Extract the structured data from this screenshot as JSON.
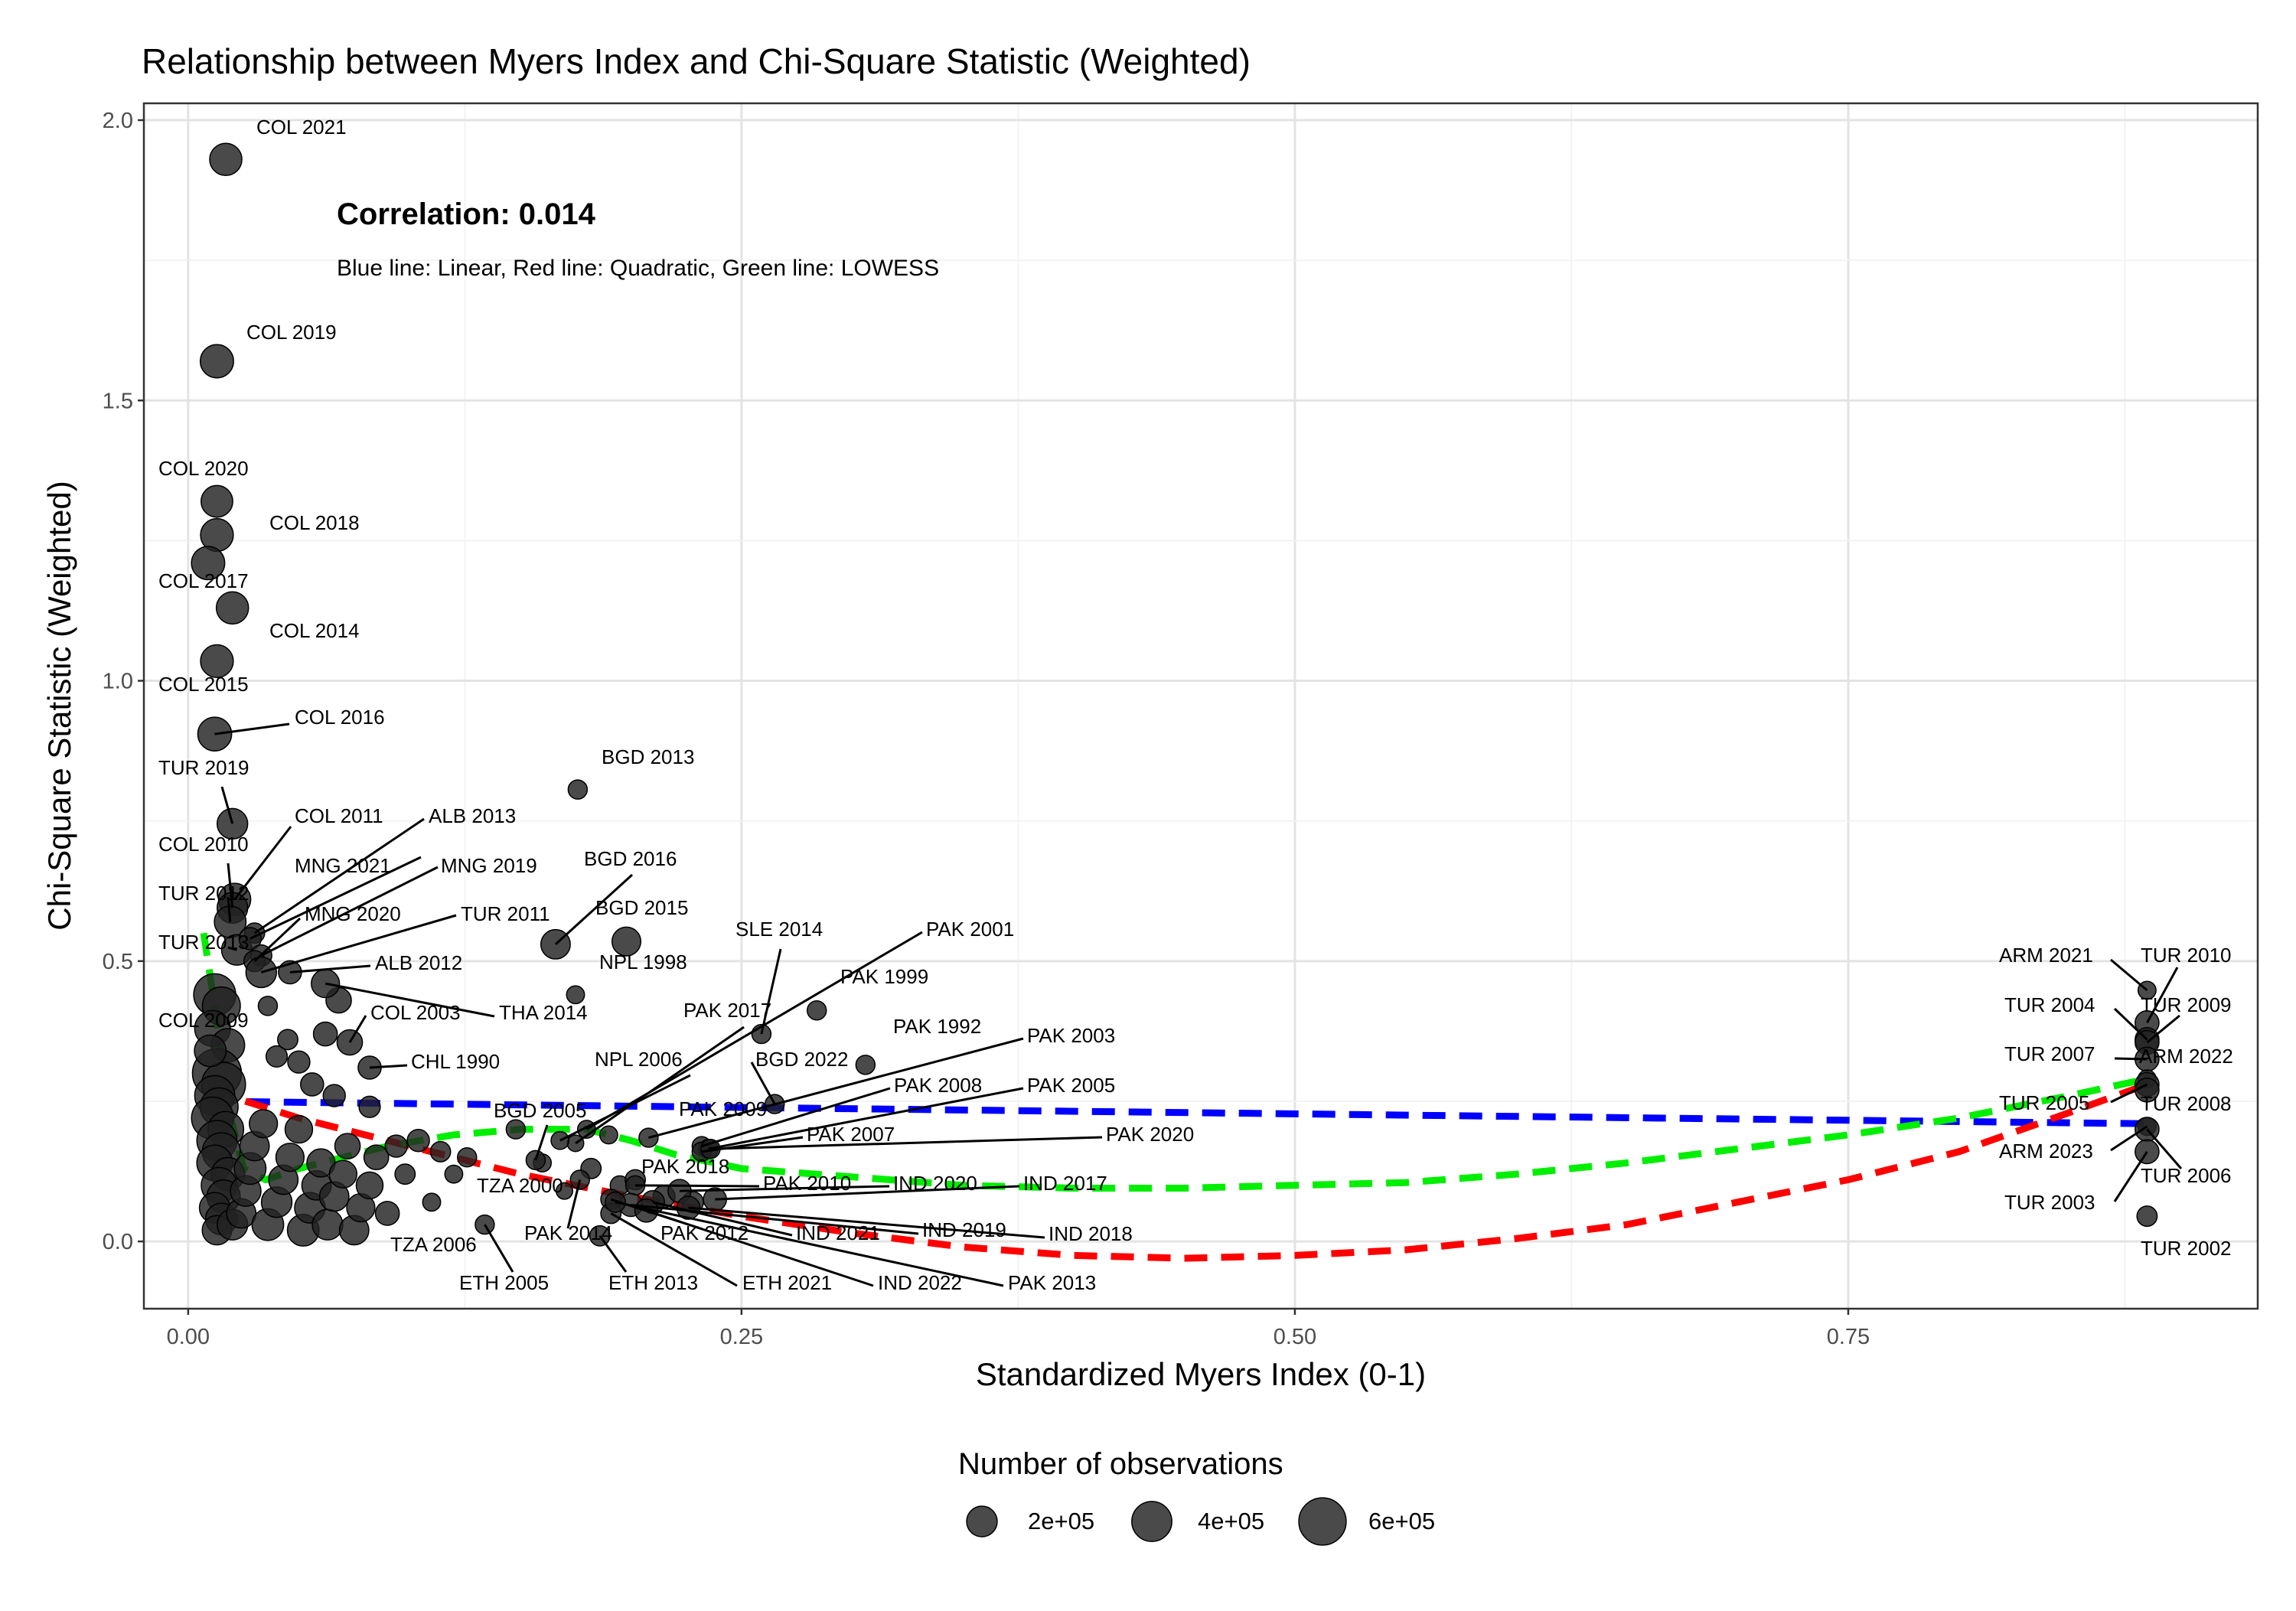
{
  "chart_data": {
    "type": "scatter",
    "title": "Relationship between Myers Index and Chi-Square Statistic (Weighted)",
    "xlabel": "Standardized Myers Index (0-1)",
    "ylabel": "Chi-Square Statistic (Weighted)",
    "xlim": [
      -0.02,
      0.935
    ],
    "ylim": [
      -0.12,
      2.03
    ],
    "x_ticks": [
      0.0,
      0.25,
      0.5,
      0.75
    ],
    "x_tick_labels": [
      "0.00",
      "0.25",
      "0.50",
      "0.75"
    ],
    "y_ticks": [
      0.0,
      0.5,
      1.0,
      1.5,
      2.0
    ],
    "y_tick_labels": [
      "0.0",
      "0.5",
      "1.0",
      "1.5",
      "2.0"
    ],
    "grid": true,
    "annotation": {
      "correlation": "Correlation: 0.014",
      "note": "Blue line: Linear, Red line: Quadratic, Green line: LOWESS"
    },
    "legend": {
      "title": "Number of observations",
      "position": "bottom",
      "entries": [
        {
          "label": "2e+05",
          "value": 200000
        },
        {
          "label": "4e+05",
          "value": 400000
        },
        {
          "label": "6e+05",
          "value": 600000
        }
      ]
    },
    "fit_lines": [
      {
        "name": "Linear",
        "color": "#0000ff",
        "x": [
          0.01,
          0.885
        ],
        "y": [
          0.25,
          0.21
        ]
      },
      {
        "name": "Quadratic",
        "color": "#ff0000",
        "x": [
          0.01,
          0.05,
          0.1,
          0.15,
          0.2,
          0.25,
          0.3,
          0.35,
          0.4,
          0.45,
          0.5,
          0.55,
          0.6,
          0.65,
          0.7,
          0.75,
          0.8,
          0.85,
          0.885
        ],
        "y": [
          0.27,
          0.22,
          0.17,
          0.12,
          0.08,
          0.045,
          0.015,
          -0.01,
          -0.025,
          -0.03,
          -0.025,
          -0.015,
          0.005,
          0.03,
          0.07,
          0.11,
          0.16,
          0.23,
          0.28
        ]
      },
      {
        "name": "LOWESS",
        "color": "#00ee00",
        "x": [
          0.007,
          0.012,
          0.018,
          0.025,
          0.035,
          0.05,
          0.07,
          0.09,
          0.12,
          0.15,
          0.18,
          0.2,
          0.22,
          0.25,
          0.3,
          0.35,
          0.4,
          0.45,
          0.5,
          0.55,
          0.6,
          0.65,
          0.7,
          0.75,
          0.8,
          0.85,
          0.885
        ],
        "y": [
          0.55,
          0.42,
          0.24,
          0.13,
          0.11,
          0.13,
          0.15,
          0.17,
          0.19,
          0.2,
          0.2,
          0.18,
          0.155,
          0.13,
          0.115,
          0.1,
          0.095,
          0.095,
          0.1,
          0.105,
          0.12,
          0.14,
          0.165,
          0.19,
          0.22,
          0.26,
          0.29
        ]
      }
    ],
    "labeled_points": [
      {
        "label": "COL 2021",
        "x": 0.017,
        "y": 1.93,
        "n": 230000
      },
      {
        "label": "COL 2019",
        "x": 0.013,
        "y": 1.57,
        "n": 250000
      },
      {
        "label": "COL 2020",
        "x": 0.013,
        "y": 1.32,
        "n": 220000
      },
      {
        "label": "COL 2018",
        "x": 0.013,
        "y": 1.26,
        "n": 240000
      },
      {
        "label": "COL 2017",
        "x": 0.009,
        "y": 1.21,
        "n": 250000
      },
      {
        "label": "COL 2014",
        "x": 0.02,
        "y": 1.13,
        "n": 230000
      },
      {
        "label": "COL 2015",
        "x": 0.013,
        "y": 1.035,
        "n": 240000
      },
      {
        "label": "COL 2016",
        "x": 0.012,
        "y": 0.905,
        "n": 260000
      },
      {
        "label": "TUR 2019",
        "x": 0.02,
        "y": 0.745,
        "n": 200000
      },
      {
        "label": "COL 2011",
        "x": 0.021,
        "y": 0.61,
        "n": 230000
      },
      {
        "label": "COL 2010",
        "x": 0.02,
        "y": 0.595,
        "n": 200000
      },
      {
        "label": "TUR 2012",
        "x": 0.019,
        "y": 0.57,
        "n": 220000
      },
      {
        "label": "TUR 2013",
        "x": 0.022,
        "y": 0.52,
        "n": 200000
      },
      {
        "label": "ALB 2013",
        "x": 0.03,
        "y": 0.55,
        "n": 60000
      },
      {
        "label": "MNG 2021",
        "x": 0.028,
        "y": 0.54,
        "n": 80000
      },
      {
        "label": "MNG 2019",
        "x": 0.033,
        "y": 0.51,
        "n": 70000
      },
      {
        "label": "MNG 2020",
        "x": 0.03,
        "y": 0.5,
        "n": 70000
      },
      {
        "label": "TUR 2011",
        "x": 0.033,
        "y": 0.48,
        "n": 200000
      },
      {
        "label": "ALB 2012",
        "x": 0.046,
        "y": 0.48,
        "n": 90000
      },
      {
        "label": "THA 2014",
        "x": 0.062,
        "y": 0.46,
        "n": 160000
      },
      {
        "label": "COL 2009",
        "x": 0.01,
        "y": 0.34,
        "n": 220000
      },
      {
        "label": "COL 2003",
        "x": 0.073,
        "y": 0.355,
        "n": 120000
      },
      {
        "label": "CHL 1990",
        "x": 0.082,
        "y": 0.31,
        "n": 90000
      },
      {
        "label": "BGD 2013",
        "x": 0.176,
        "y": 0.806,
        "n": 50000
      },
      {
        "label": "BGD 2016",
        "x": 0.166,
        "y": 0.53,
        "n": 180000
      },
      {
        "label": "BGD 2015",
        "x": 0.198,
        "y": 0.535,
        "n": 170000
      },
      {
        "label": "NPL 1998",
        "x": 0.175,
        "y": 0.44,
        "n": 40000
      },
      {
        "label": "SLE 2014",
        "x": 0.259,
        "y": 0.37,
        "n": 50000
      },
      {
        "label": "PAK 2001",
        "x": 0.18,
        "y": 0.2,
        "n": 40000
      },
      {
        "label": "PAK 1999",
        "x": 0.284,
        "y": 0.412,
        "n": 50000
      },
      {
        "label": "PAK 2017",
        "x": 0.175,
        "y": 0.175,
        "n": 30000
      },
      {
        "label": "PAK 1992",
        "x": 0.306,
        "y": 0.315,
        "n": 50000
      },
      {
        "label": "NPL 2006",
        "x": 0.168,
        "y": 0.18,
        "n": 40000
      },
      {
        "label": "BGD 2022",
        "x": 0.265,
        "y": 0.245,
        "n": 50000
      },
      {
        "label": "PAK 2003",
        "x": 0.208,
        "y": 0.185,
        "n": 50000
      },
      {
        "label": "BGD 2005",
        "x": 0.157,
        "y": 0.145,
        "n": 50000
      },
      {
        "label": "PAK 2009",
        "x": 0.19,
        "y": 0.19,
        "n": 40000
      },
      {
        "label": "PAK 2008",
        "x": 0.232,
        "y": 0.17,
        "n": 50000
      },
      {
        "label": "PAK 2005",
        "x": 0.235,
        "y": 0.165,
        "n": 50000
      },
      {
        "label": "PAK 2007",
        "x": 0.232,
        "y": 0.16,
        "n": 50000
      },
      {
        "label": "PAK 2020",
        "x": 0.236,
        "y": 0.165,
        "n": 50000
      },
      {
        "label": "PAK 2018",
        "x": 0.202,
        "y": 0.11,
        "n": 60000
      },
      {
        "label": "PAK 2010",
        "x": 0.202,
        "y": 0.1,
        "n": 50000
      },
      {
        "label": "IND 2020",
        "x": 0.222,
        "y": 0.09,
        "n": 90000
      },
      {
        "label": "IND 2017",
        "x": 0.238,
        "y": 0.075,
        "n": 90000
      },
      {
        "label": "TZA 2000",
        "x": 0.17,
        "y": 0.09,
        "n": 30000
      },
      {
        "label": "TZA 2006",
        "x": 0.11,
        "y": 0.07,
        "n": 40000
      },
      {
        "label": "PAK 2014",
        "x": 0.177,
        "y": 0.11,
        "n": 50000
      },
      {
        "label": "PAK 2012",
        "x": 0.191,
        "y": 0.075,
        "n": 60000
      },
      {
        "label": "IND 2021",
        "x": 0.21,
        "y": 0.07,
        "n": 90000
      },
      {
        "label": "IND 2019",
        "x": 0.2,
        "y": 0.065,
        "n": 90000
      },
      {
        "label": "IND 2018",
        "x": 0.226,
        "y": 0.06,
        "n": 90000
      },
      {
        "label": "ETH 2005",
        "x": 0.134,
        "y": 0.03,
        "n": 50000
      },
      {
        "label": "ETH 2013",
        "x": 0.186,
        "y": 0.01,
        "n": 60000
      },
      {
        "label": "ETH 2021",
        "x": 0.191,
        "y": 0.05,
        "n": 60000
      },
      {
        "label": "IND 2022",
        "x": 0.207,
        "y": 0.055,
        "n": 90000
      },
      {
        "label": "PAK 2013",
        "x": 0.193,
        "y": 0.07,
        "n": 60000
      },
      {
        "label": "ARM 2021",
        "x": 0.885,
        "y": 0.448,
        "n": 40000
      },
      {
        "label": "TUR 2010",
        "x": 0.885,
        "y": 0.39,
        "n": 100000
      },
      {
        "label": "TUR 2004",
        "x": 0.885,
        "y": 0.36,
        "n": 100000
      },
      {
        "label": "TUR 2009",
        "x": 0.885,
        "y": 0.355,
        "n": 100000
      },
      {
        "label": "TUR 2007",
        "x": 0.885,
        "y": 0.325,
        "n": 100000
      },
      {
        "label": "ARM 2022",
        "x": 0.885,
        "y": 0.29,
        "n": 40000
      },
      {
        "label": "TUR 2005",
        "x": 0.885,
        "y": 0.28,
        "n": 100000
      },
      {
        "label": "TUR 2008",
        "x": 0.885,
        "y": 0.27,
        "n": 100000
      },
      {
        "label": "ARM 2023",
        "x": 0.885,
        "y": 0.205,
        "n": 40000
      },
      {
        "label": "TUR 2006",
        "x": 0.885,
        "y": 0.2,
        "n": 100000
      },
      {
        "label": "TUR 2003",
        "x": 0.885,
        "y": 0.16,
        "n": 100000
      },
      {
        "label": "TUR 2002",
        "x": 0.885,
        "y": 0.045,
        "n": 60000
      }
    ],
    "unlabeled_points": [
      {
        "x": 0.012,
        "y": 0.44,
        "n": 450000
      },
      {
        "x": 0.015,
        "y": 0.42,
        "n": 350000
      },
      {
        "x": 0.011,
        "y": 0.38,
        "n": 300000
      },
      {
        "x": 0.018,
        "y": 0.35,
        "n": 250000
      },
      {
        "x": 0.013,
        "y": 0.3,
        "n": 650000
      },
      {
        "x": 0.016,
        "y": 0.28,
        "n": 500000
      },
      {
        "x": 0.012,
        "y": 0.26,
        "n": 400000
      },
      {
        "x": 0.014,
        "y": 0.24,
        "n": 350000
      },
      {
        "x": 0.011,
        "y": 0.22,
        "n": 450000
      },
      {
        "x": 0.017,
        "y": 0.2,
        "n": 300000
      },
      {
        "x": 0.013,
        "y": 0.18,
        "n": 400000
      },
      {
        "x": 0.015,
        "y": 0.16,
        "n": 350000
      },
      {
        "x": 0.012,
        "y": 0.14,
        "n": 300000
      },
      {
        "x": 0.018,
        "y": 0.12,
        "n": 250000
      },
      {
        "x": 0.014,
        "y": 0.1,
        "n": 300000
      },
      {
        "x": 0.016,
        "y": 0.08,
        "n": 250000
      },
      {
        "x": 0.012,
        "y": 0.06,
        "n": 200000
      },
      {
        "x": 0.015,
        "y": 0.04,
        "n": 220000
      },
      {
        "x": 0.013,
        "y": 0.02,
        "n": 180000
      },
      {
        "x": 0.02,
        "y": 0.03,
        "n": 200000
      },
      {
        "x": 0.024,
        "y": 0.05,
        "n": 180000
      },
      {
        "x": 0.026,
        "y": 0.09,
        "n": 200000
      },
      {
        "x": 0.028,
        "y": 0.13,
        "n": 220000
      },
      {
        "x": 0.03,
        "y": 0.17,
        "n": 180000
      },
      {
        "x": 0.034,
        "y": 0.21,
        "n": 160000
      },
      {
        "x": 0.036,
        "y": 0.03,
        "n": 220000
      },
      {
        "x": 0.04,
        "y": 0.07,
        "n": 200000
      },
      {
        "x": 0.043,
        "y": 0.11,
        "n": 180000
      },
      {
        "x": 0.046,
        "y": 0.15,
        "n": 160000
      },
      {
        "x": 0.05,
        "y": 0.2,
        "n": 150000
      },
      {
        "x": 0.052,
        "y": 0.02,
        "n": 220000
      },
      {
        "x": 0.055,
        "y": 0.06,
        "n": 200000
      },
      {
        "x": 0.058,
        "y": 0.1,
        "n": 180000
      },
      {
        "x": 0.06,
        "y": 0.14,
        "n": 160000
      },
      {
        "x": 0.063,
        "y": 0.03,
        "n": 200000
      },
      {
        "x": 0.066,
        "y": 0.08,
        "n": 180000
      },
      {
        "x": 0.07,
        "y": 0.12,
        "n": 150000
      },
      {
        "x": 0.072,
        "y": 0.17,
        "n": 120000
      },
      {
        "x": 0.075,
        "y": 0.02,
        "n": 180000
      },
      {
        "x": 0.078,
        "y": 0.06,
        "n": 160000
      },
      {
        "x": 0.082,
        "y": 0.1,
        "n": 140000
      },
      {
        "x": 0.085,
        "y": 0.15,
        "n": 110000
      },
      {
        "x": 0.09,
        "y": 0.05,
        "n": 100000
      },
      {
        "x": 0.094,
        "y": 0.17,
        "n": 80000
      },
      {
        "x": 0.098,
        "y": 0.12,
        "n": 60000
      },
      {
        "x": 0.104,
        "y": 0.18,
        "n": 80000
      },
      {
        "x": 0.114,
        "y": 0.16,
        "n": 60000
      },
      {
        "x": 0.12,
        "y": 0.12,
        "n": 40000
      },
      {
        "x": 0.126,
        "y": 0.15,
        "n": 50000
      },
      {
        "x": 0.036,
        "y": 0.42,
        "n": 50000
      },
      {
        "x": 0.05,
        "y": 0.32,
        "n": 80000
      },
      {
        "x": 0.056,
        "y": 0.28,
        "n": 90000
      },
      {
        "x": 0.062,
        "y": 0.37,
        "n": 100000
      },
      {
        "x": 0.066,
        "y": 0.26,
        "n": 80000
      },
      {
        "x": 0.068,
        "y": 0.43,
        "n": 120000
      },
      {
        "x": 0.04,
        "y": 0.33,
        "n": 70000
      },
      {
        "x": 0.045,
        "y": 0.36,
        "n": 60000
      },
      {
        "x": 0.082,
        "y": 0.24,
        "n": 70000
      },
      {
        "x": 0.148,
        "y": 0.2,
        "n": 50000
      },
      {
        "x": 0.16,
        "y": 0.14,
        "n": 40000
      },
      {
        "x": 0.182,
        "y": 0.13,
        "n": 60000
      },
      {
        "x": 0.195,
        "y": 0.1,
        "n": 50000
      },
      {
        "x": 0.215,
        "y": 0.08,
        "n": 80000
      },
      {
        "x": 0.228,
        "y": 0.07,
        "n": 70000
      }
    ]
  }
}
